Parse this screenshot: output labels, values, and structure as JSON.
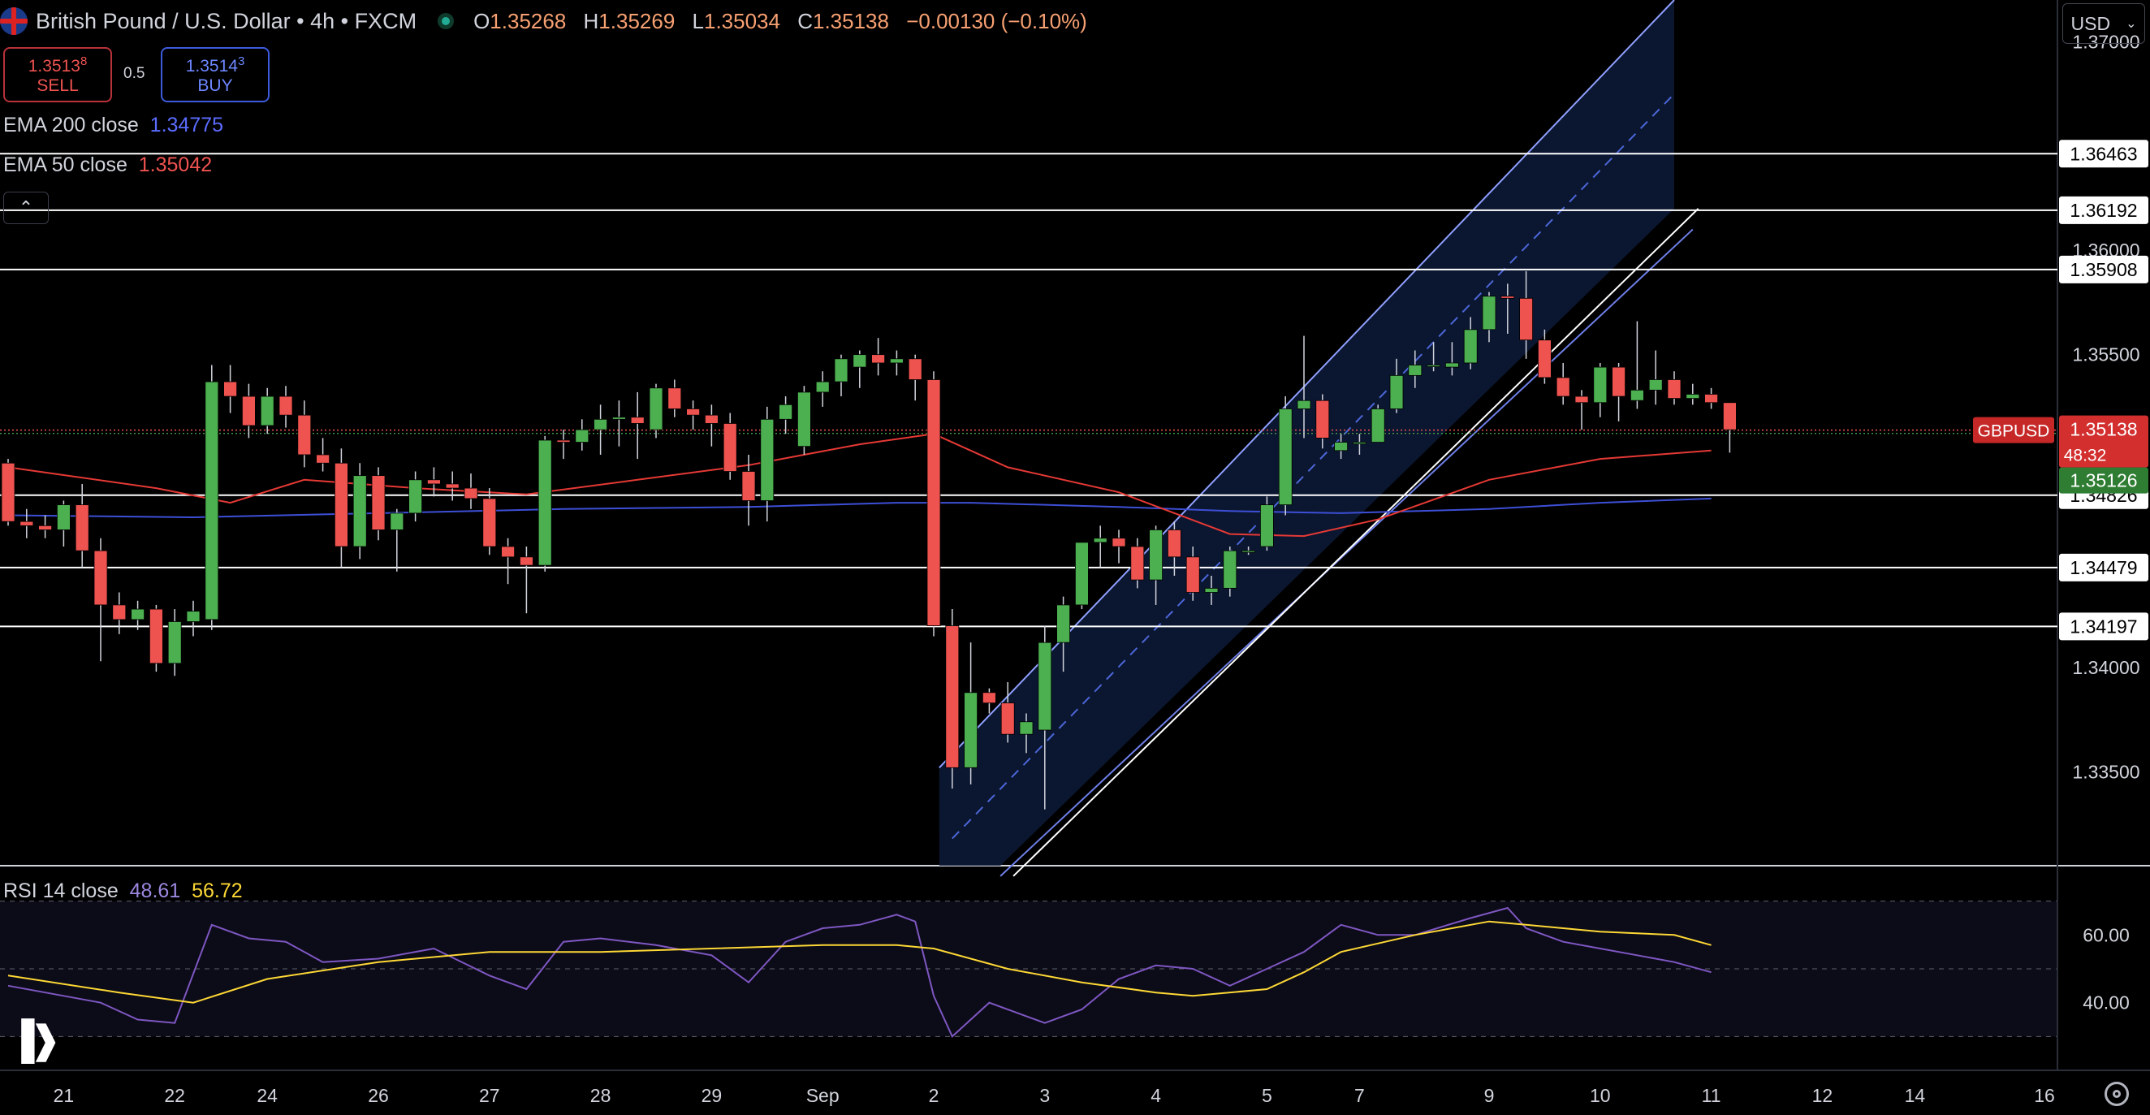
{
  "header": {
    "title": "British Pound / U.S. Dollar • 4h • FXCM",
    "o_label": "O",
    "o": "1.35268",
    "h_label": "H",
    "h": "1.35269",
    "l_label": "L",
    "l": "1.35034",
    "c_label": "C",
    "c": "1.35138",
    "change": "−0.00130 (−0.10%)"
  },
  "trade": {
    "sell_price": "1.3513",
    "sell_sup": "8",
    "sell_label": "SELL",
    "spread": "0.5",
    "buy_price": "1.3514",
    "buy_sup": "3",
    "buy_label": "BUY"
  },
  "indicators": {
    "ema200_label": "EMA 200 close",
    "ema200_value": "1.34775",
    "ema50_label": "EMA 50 close",
    "ema50_value": "1.35042",
    "rsi_label": "RSI 14 close",
    "rsi_value": "48.61",
    "rsi_ma_value": "56.72"
  },
  "currency_select": "USD",
  "icons": {
    "collapse": "chevron-up-icon",
    "logo": "tradingview-logo",
    "settings": "gear-icon"
  },
  "colors": {
    "up": "#4caf50",
    "down": "#ef5350",
    "ema50": "#e53935",
    "ema200": "#3d4fd6",
    "rsi": "#7e57c2",
    "rsi_ma": "#fdd835",
    "channel": "#ffffff"
  },
  "chart_data": [
    {
      "type": "candlestick",
      "symbol": "GBPUSD",
      "interval": "4h",
      "ylim": [
        1.3305,
        1.372
      ],
      "y_ticks": [
        "1.37000",
        "1.36000",
        "1.35500",
        "1.34000",
        "1.33500"
      ],
      "x_ticks": [
        {
          "label": "21",
          "i": 3
        },
        {
          "label": "22",
          "i": 9
        },
        {
          "label": "24",
          "i": 14
        },
        {
          "label": "26",
          "i": 20
        },
        {
          "label": "27",
          "i": 26
        },
        {
          "label": "28",
          "i": 32
        },
        {
          "label": "29",
          "i": 38
        },
        {
          "label": "Sep",
          "i": 44
        },
        {
          "label": "2",
          "i": 50
        },
        {
          "label": "3",
          "i": 56
        },
        {
          "label": "4",
          "i": 62
        },
        {
          "label": "5",
          "i": 68
        },
        {
          "label": "7",
          "i": 73
        },
        {
          "label": "9",
          "i": 80
        },
        {
          "label": "10",
          "i": 86
        },
        {
          "label": "11",
          "i": 92
        },
        {
          "label": "12",
          "i": 98
        },
        {
          "label": "14",
          "i": 103
        },
        {
          "label": "16",
          "i": 110
        }
      ],
      "candles": [
        [
          1.3498,
          1.35,
          1.3468,
          1.347
        ],
        [
          1.347,
          1.3476,
          1.3462,
          1.3468
        ],
        [
          1.3468,
          1.3473,
          1.3462,
          1.3466
        ],
        [
          1.3466,
          1.348,
          1.3458,
          1.3478
        ],
        [
          1.3478,
          1.3488,
          1.3448,
          1.3456
        ],
        [
          1.3456,
          1.3462,
          1.3403,
          1.343
        ],
        [
          1.343,
          1.3436,
          1.3416,
          1.3423
        ],
        [
          1.3423,
          1.3432,
          1.3418,
          1.3428
        ],
        [
          1.3428,
          1.343,
          1.3398,
          1.3402
        ],
        [
          1.3402,
          1.3428,
          1.3396,
          1.3422
        ],
        [
          1.3422,
          1.3432,
          1.3415,
          1.3427
        ],
        [
          1.3423,
          1.3545,
          1.3418,
          1.3537
        ],
        [
          1.3537,
          1.3545,
          1.3522,
          1.353
        ],
        [
          1.353,
          1.3536,
          1.351,
          1.3516
        ],
        [
          1.3516,
          1.3534,
          1.3512,
          1.353
        ],
        [
          1.353,
          1.3535,
          1.3515,
          1.3521
        ],
        [
          1.3521,
          1.3528,
          1.3496,
          1.3502
        ],
        [
          1.3502,
          1.351,
          1.3494,
          1.3498
        ],
        [
          1.3498,
          1.3505,
          1.3448,
          1.3458
        ],
        [
          1.3458,
          1.3498,
          1.3452,
          1.3492
        ],
        [
          1.3492,
          1.3496,
          1.3461,
          1.3466
        ],
        [
          1.3466,
          1.3476,
          1.3446,
          1.3474
        ],
        [
          1.3474,
          1.3494,
          1.347,
          1.349
        ],
        [
          1.349,
          1.3496,
          1.3482,
          1.3488
        ],
        [
          1.3488,
          1.3494,
          1.348,
          1.3486
        ],
        [
          1.3486,
          1.3493,
          1.3476,
          1.3481
        ],
        [
          1.3481,
          1.3486,
          1.3454,
          1.3458
        ],
        [
          1.3458,
          1.3462,
          1.344,
          1.3453
        ],
        [
          1.3453,
          1.3458,
          1.3426,
          1.3449
        ],
        [
          1.3449,
          1.3511,
          1.3446,
          1.3509
        ],
        [
          1.3509,
          1.3514,
          1.35,
          1.3508
        ],
        [
          1.3508,
          1.3519,
          1.3504,
          1.3514
        ],
        [
          1.3514,
          1.3526,
          1.3502,
          1.3519
        ],
        [
          1.3519,
          1.3528,
          1.3506,
          1.352
        ],
        [
          1.352,
          1.3532,
          1.35,
          1.3517
        ],
        [
          1.3514,
          1.3536,
          1.351,
          1.3534
        ],
        [
          1.3534,
          1.3538,
          1.352,
          1.3524
        ],
        [
          1.3524,
          1.3528,
          1.3514,
          1.3521
        ],
        [
          1.3521,
          1.3526,
          1.3506,
          1.3517
        ],
        [
          1.3517,
          1.3522,
          1.349,
          1.3494
        ],
        [
          1.3494,
          1.3502,
          1.3468,
          1.348
        ],
        [
          1.348,
          1.3525,
          1.347,
          1.3519
        ],
        [
          1.3519,
          1.353,
          1.3512,
          1.3526
        ],
        [
          1.3506,
          1.3535,
          1.3502,
          1.3532
        ],
        [
          1.3532,
          1.3542,
          1.3525,
          1.3537
        ],
        [
          1.3537,
          1.355,
          1.353,
          1.3548
        ],
        [
          1.3544,
          1.3552,
          1.3534,
          1.355
        ],
        [
          1.355,
          1.3558,
          1.354,
          1.3546
        ],
        [
          1.3546,
          1.3552,
          1.354,
          1.3548
        ],
        [
          1.3548,
          1.355,
          1.3528,
          1.3538
        ],
        [
          1.3538,
          1.3542,
          1.3415,
          1.342
        ],
        [
          1.342,
          1.3428,
          1.3342,
          1.3352
        ],
        [
          1.3352,
          1.3412,
          1.3344,
          1.3388
        ],
        [
          1.3388,
          1.339,
          1.3378,
          1.3383
        ],
        [
          1.3383,
          1.3393,
          1.3364,
          1.3368
        ],
        [
          1.3368,
          1.3378,
          1.3359,
          1.3374
        ],
        [
          1.337,
          1.342,
          1.3332,
          1.3412
        ],
        [
          1.3412,
          1.3434,
          1.3398,
          1.343
        ],
        [
          1.343,
          1.346,
          1.3428,
          1.346
        ],
        [
          1.346,
          1.3468,
          1.3448,
          1.3462
        ],
        [
          1.3462,
          1.3466,
          1.345,
          1.3458
        ],
        [
          1.3458,
          1.3462,
          1.3438,
          1.3442
        ],
        [
          1.3442,
          1.3468,
          1.343,
          1.3466
        ],
        [
          1.3466,
          1.347,
          1.3444,
          1.3453
        ],
        [
          1.3453,
          1.3458,
          1.3432,
          1.3436
        ],
        [
          1.3436,
          1.3444,
          1.343,
          1.3438
        ],
        [
          1.3438,
          1.3458,
          1.3434,
          1.3456
        ],
        [
          1.3456,
          1.3458,
          1.3454,
          1.3456
        ],
        [
          1.3458,
          1.3482,
          1.3456,
          1.3478
        ],
        [
          1.3478,
          1.353,
          1.3473,
          1.3524
        ],
        [
          1.3524,
          1.3559,
          1.351,
          1.3528
        ],
        [
          1.3528,
          1.3531,
          1.3505,
          1.351
        ],
        [
          1.3504,
          1.3512,
          1.35,
          1.3508
        ],
        [
          1.3508,
          1.3512,
          1.3502,
          1.3508
        ],
        [
          1.3508,
          1.3526,
          1.3508,
          1.3524
        ],
        [
          1.3524,
          1.3548,
          1.3522,
          1.354
        ],
        [
          1.354,
          1.3552,
          1.3534,
          1.3545
        ],
        [
          1.3545,
          1.3556,
          1.3542,
          1.3545
        ],
        [
          1.3544,
          1.3556,
          1.354,
          1.3546
        ],
        [
          1.3546,
          1.3568,
          1.3543,
          1.3562
        ],
        [
          1.3562,
          1.358,
          1.3556,
          1.3578
        ],
        [
          1.3578,
          1.3584,
          1.356,
          1.3577
        ],
        [
          1.3577,
          1.359,
          1.3548,
          1.3557
        ],
        [
          1.3557,
          1.3562,
          1.3536,
          1.3539
        ],
        [
          1.3539,
          1.3546,
          1.3526,
          1.353
        ],
        [
          1.353,
          1.3533,
          1.3514,
          1.3527
        ],
        [
          1.3527,
          1.3546,
          1.352,
          1.3544
        ],
        [
          1.3544,
          1.3546,
          1.3518,
          1.353
        ],
        [
          1.3528,
          1.3566,
          1.3524,
          1.3533
        ],
        [
          1.3533,
          1.3552,
          1.3526,
          1.3538
        ],
        [
          1.3538,
          1.3542,
          1.3526,
          1.3529
        ],
        [
          1.3529,
          1.3536,
          1.3526,
          1.3531
        ],
        [
          1.3531,
          1.3534,
          1.3524,
          1.3527
        ],
        [
          1.3527,
          1.3527,
          1.3503,
          1.3514
        ]
      ],
      "channel": {
        "upper": [
          [
            50.3,
            1.3352
          ],
          [
            90.0,
            1.372
          ]
        ],
        "mid": [
          [
            51.0,
            1.3318
          ],
          [
            90.0,
            1.3675
          ]
        ],
        "lower": [
          [
            53.6,
            1.33
          ],
          [
            91.0,
            1.361
          ]
        ],
        "outer": [
          [
            54.3,
            1.33
          ],
          [
            91.3,
            1.362
          ]
        ]
      },
      "horizontal_levels": [
        {
          "value": 1.36463,
          "label": "1.36463"
        },
        {
          "value": 1.36192,
          "label": "1.36192"
        },
        {
          "value": 1.35908,
          "label": "1.35908"
        },
        {
          "value": 1.34826,
          "label": "1.34826"
        },
        {
          "value": 1.34479,
          "label": "1.34479"
        },
        {
          "value": 1.34197,
          "label": "1.34197"
        }
      ],
      "ema50": [
        [
          0,
          1.3496
        ],
        [
          8,
          1.3486
        ],
        [
          12,
          1.3479
        ],
        [
          16,
          1.349
        ],
        [
          22,
          1.3486
        ],
        [
          28,
          1.3483
        ],
        [
          34,
          1.349
        ],
        [
          40,
          1.3497
        ],
        [
          46,
          1.3507
        ],
        [
          50,
          1.3512
        ],
        [
          54,
          1.3496
        ],
        [
          60,
          1.3484
        ],
        [
          66,
          1.3464
        ],
        [
          70,
          1.3463
        ],
        [
          74,
          1.3471
        ],
        [
          80,
          1.349
        ],
        [
          86,
          1.35
        ],
        [
          92,
          1.3504
        ]
      ],
      "ema200": [
        [
          0,
          1.3473
        ],
        [
          10,
          1.3472
        ],
        [
          20,
          1.3474
        ],
        [
          30,
          1.3476
        ],
        [
          40,
          1.3477
        ],
        [
          48,
          1.3479
        ],
        [
          52,
          1.3479
        ],
        [
          60,
          1.3477
        ],
        [
          66,
          1.3475
        ],
        [
          72,
          1.3474
        ],
        [
          80,
          1.3476
        ],
        [
          86,
          1.3479
        ],
        [
          92,
          1.3481
        ]
      ],
      "price_labels": {
        "symbol": "GBPUSD",
        "last": "1.35138",
        "countdown": "48:32",
        "buy": "1.35126",
        "y_last": 1.35138,
        "y_buy": 1.35126
      }
    },
    {
      "type": "line",
      "name": "RSI 14 close",
      "ylim": [
        20,
        80
      ],
      "y_ticks": [
        "60.00",
        "40.00"
      ],
      "bands": [
        70,
        50,
        30
      ],
      "series": [
        {
          "name": "RSI",
          "points": [
            [
              0,
              45
            ],
            [
              3,
              42
            ],
            [
              5,
              40
            ],
            [
              7,
              35
            ],
            [
              9,
              34
            ],
            [
              11,
              63
            ],
            [
              13,
              59
            ],
            [
              15,
              58
            ],
            [
              17,
              52
            ],
            [
              20,
              53
            ],
            [
              23,
              56
            ],
            [
              26,
              48
            ],
            [
              28,
              44
            ],
            [
              30,
              58
            ],
            [
              32,
              59
            ],
            [
              35,
              57
            ],
            [
              38,
              54
            ],
            [
              40,
              46
            ],
            [
              42,
              58
            ],
            [
              44,
              62
            ],
            [
              46,
              63
            ],
            [
              48,
              66
            ],
            [
              49,
              64
            ],
            [
              50,
              42
            ],
            [
              51,
              30
            ],
            [
              53,
              40
            ],
            [
              56,
              34
            ],
            [
              58,
              38
            ],
            [
              60,
              47
            ],
            [
              62,
              51
            ],
            [
              64,
              50
            ],
            [
              66,
              45
            ],
            [
              68,
              50
            ],
            [
              70,
              55
            ],
            [
              72,
              63
            ],
            [
              74,
              60
            ],
            [
              76,
              60
            ],
            [
              79,
              65
            ],
            [
              81,
              68
            ],
            [
              82,
              62
            ],
            [
              84,
              58
            ],
            [
              86,
              56
            ],
            [
              88,
              54
            ],
            [
              90,
              52
            ],
            [
              92,
              49
            ]
          ]
        },
        {
          "name": "RSI MA",
          "points": [
            [
              0,
              48
            ],
            [
              6,
              43
            ],
            [
              10,
              40
            ],
            [
              14,
              47
            ],
            [
              20,
              52
            ],
            [
              26,
              55
            ],
            [
              32,
              55
            ],
            [
              38,
              56
            ],
            [
              44,
              57
            ],
            [
              48,
              57
            ],
            [
              50,
              56
            ],
            [
              54,
              50
            ],
            [
              58,
              46
            ],
            [
              62,
              43
            ],
            [
              64,
              42
            ],
            [
              68,
              44
            ],
            [
              70,
              49
            ],
            [
              72,
              55
            ],
            [
              76,
              60
            ],
            [
              80,
              64
            ],
            [
              82,
              63
            ],
            [
              86,
              61
            ],
            [
              90,
              60
            ],
            [
              92,
              57
            ]
          ]
        }
      ]
    }
  ]
}
